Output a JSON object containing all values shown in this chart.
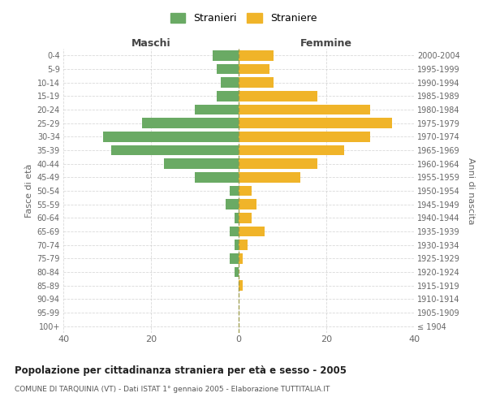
{
  "age_groups": [
    "100+",
    "95-99",
    "90-94",
    "85-89",
    "80-84",
    "75-79",
    "70-74",
    "65-69",
    "60-64",
    "55-59",
    "50-54",
    "45-49",
    "40-44",
    "35-39",
    "30-34",
    "25-29",
    "20-24",
    "15-19",
    "10-14",
    "5-9",
    "0-4"
  ],
  "birth_years": [
    "≤ 1904",
    "1905-1909",
    "1910-1914",
    "1915-1919",
    "1920-1924",
    "1925-1929",
    "1930-1934",
    "1935-1939",
    "1940-1944",
    "1945-1949",
    "1950-1954",
    "1955-1959",
    "1960-1964",
    "1965-1969",
    "1970-1974",
    "1975-1979",
    "1980-1984",
    "1985-1989",
    "1990-1994",
    "1995-1999",
    "2000-2004"
  ],
  "maschi": [
    0,
    0,
    0,
    0,
    1,
    2,
    1,
    2,
    1,
    3,
    2,
    10,
    17,
    29,
    31,
    22,
    10,
    5,
    4,
    5,
    6
  ],
  "femmine": [
    0,
    0,
    0,
    1,
    0,
    1,
    2,
    6,
    3,
    4,
    3,
    14,
    18,
    24,
    30,
    35,
    30,
    18,
    8,
    7,
    8
  ],
  "color_maschi": "#6aaa64",
  "color_femmine": "#f0b429",
  "title": "Popolazione per cittadinanza straniera per età e sesso - 2005",
  "subtitle": "COMUNE DI TARQUINIA (VT) - Dati ISTAT 1° gennaio 2005 - Elaborazione TUTTITALIA.IT",
  "ylabel_left": "Fasce di età",
  "ylabel_right": "Anni di nascita",
  "label_maschi": "Maschi",
  "label_femmine": "Femmine",
  "legend_maschi": "Stranieri",
  "legend_femmine": "Straniere",
  "xlim": 40,
  "background_color": "#ffffff",
  "grid_color": "#d0d0d0"
}
